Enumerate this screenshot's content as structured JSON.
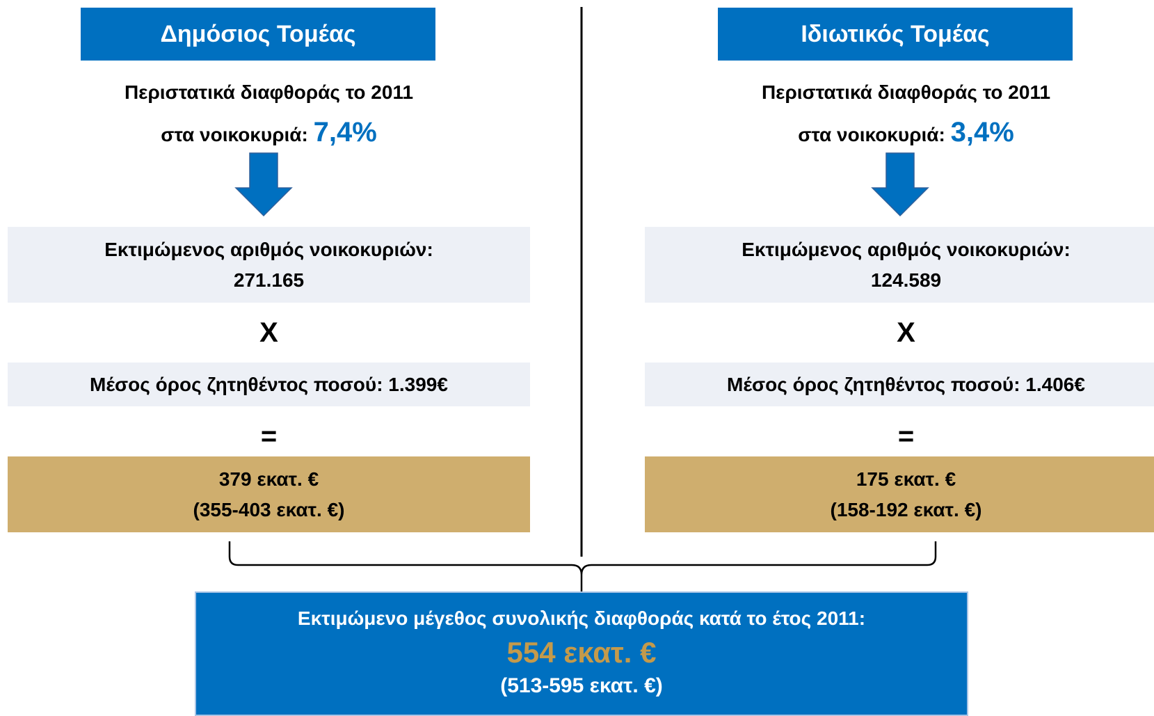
{
  "columns": [
    {
      "header": "Δημόσιος Τομέας",
      "incidents_label": "Περιστατικά διαφθοράς το 2011",
      "households_label": "στα νοικοκυριά:",
      "rate": "7,4%",
      "households_title": "Εκτιμώμενος αριθμός νοικοκυριών:",
      "households": "271.165",
      "times": "X",
      "avg_label": "Μέσος όρος ζητηθέντος ποσού: 1.399€",
      "equals": "=",
      "total": "379 εκατ. €",
      "range": "(355-403 εκατ. €)"
    },
    {
      "header": "Ιδιωτικός Τομέας",
      "incidents_label": "Περιστατικά διαφθοράς το 2011",
      "households_label": "στα νοικοκυριά:",
      "rate": "3,4%",
      "households_title": "Εκτιμώμενος αριθμός νοικοκυριών:",
      "households": "124.589",
      "times": "X",
      "avg_label": "Μέσος όρος ζητηθέντος ποσού: 1.406€",
      "equals": "=",
      "total": "175 εκατ. €",
      "range": "(158-192 εκατ. €)"
    }
  ],
  "summary": {
    "title": "Εκτιμώμενο μέγεθος συνολικής διαφθοράς κατά το έτος 2011:",
    "total": "554 εκατ. €",
    "range": "(513-595 εκατ. €)"
  }
}
